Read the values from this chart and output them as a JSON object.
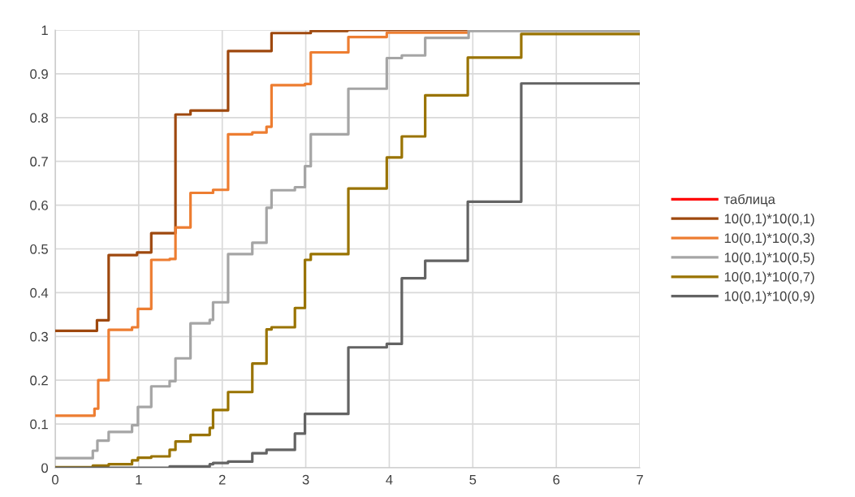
{
  "chart_data": {
    "type": "step",
    "xlim": [
      0,
      7
    ],
    "xticks": [
      0,
      1,
      2,
      3,
      4,
      5,
      6,
      7
    ],
    "ylim": [
      0,
      1
    ],
    "yticks": [
      0,
      0.1,
      0.2,
      0.3,
      0.4,
      0.5,
      0.6,
      0.7,
      0.8,
      0.9,
      1
    ],
    "grid": true,
    "legend": "right",
    "series": [
      {
        "name": "таблица",
        "color": "#ff0000"
      },
      {
        "name": "10(0,1)*10(0,1)",
        "color": "#9e480e",
        "x": [
          0,
          0.5,
          0.64,
          0.98,
          1.15,
          1.44,
          1.62,
          2.07,
          2.59,
          3.06,
          3.5,
          7
        ],
        "values": [
          0.313,
          0.337,
          0.486,
          0.492,
          0.536,
          0.807,
          0.816,
          0.952,
          0.993,
          0.998,
          1,
          1
        ]
      },
      {
        "name": "10(0,1)*10(0,3)",
        "color": "#ed7d31",
        "x": [
          0,
          0.47,
          0.515,
          0.64,
          0.92,
          0.99,
          1.15,
          1.37,
          1.44,
          1.62,
          1.89,
          2.07,
          2.36,
          2.53,
          2.59,
          2.99,
          3.06,
          3.51,
          3.97,
          4.95,
          7
        ],
        "values": [
          0.119,
          0.135,
          0.2,
          0.315,
          0.321,
          0.363,
          0.475,
          0.477,
          0.549,
          0.628,
          0.635,
          0.762,
          0.766,
          0.779,
          0.874,
          0.877,
          0.949,
          0.984,
          0.994,
          1,
          1
        ]
      },
      {
        "name": "10(0,1)*10(0,5)",
        "color": "#a5a5a5",
        "x": [
          0,
          0.45,
          0.505,
          0.64,
          0.92,
          0.99,
          1.15,
          1.37,
          1.44,
          1.62,
          1.85,
          1.89,
          2.07,
          2.36,
          2.53,
          2.59,
          2.87,
          2.99,
          3.06,
          3.51,
          3.97,
          4.15,
          4.43,
          4.95,
          7
        ],
        "values": [
          0.022,
          0.039,
          0.062,
          0.082,
          0.097,
          0.139,
          0.186,
          0.198,
          0.25,
          0.33,
          0.338,
          0.378,
          0.488,
          0.514,
          0.594,
          0.634,
          0.641,
          0.689,
          0.762,
          0.866,
          0.936,
          0.942,
          0.982,
          0.998,
          0.998
        ]
      },
      {
        "name": "10(0,1)*10(0,7)",
        "color": "#997300",
        "x": [
          0,
          0.45,
          0.64,
          0.92,
          0.99,
          1.15,
          1.37,
          1.44,
          1.62,
          1.85,
          1.89,
          2.07,
          2.36,
          2.53,
          2.59,
          2.87,
          2.99,
          3.06,
          3.51,
          3.97,
          4.15,
          4.43,
          4.94,
          5.58,
          7
        ],
        "values": [
          0.001,
          0.005,
          0.008,
          0.017,
          0.023,
          0.026,
          0.041,
          0.06,
          0.075,
          0.091,
          0.132,
          0.173,
          0.238,
          0.316,
          0.321,
          0.365,
          0.475,
          0.488,
          0.638,
          0.709,
          0.757,
          0.851,
          0.937,
          0.991,
          0.991
        ]
      },
      {
        "name": "10(0,1)*10(0,9)",
        "color": "#636363",
        "x": [
          0,
          1.37,
          1.85,
          1.89,
          2.07,
          2.36,
          2.53,
          2.87,
          2.99,
          3.51,
          3.97,
          4.15,
          4.43,
          4.94,
          5.58,
          7
        ],
        "values": [
          0,
          0.003,
          0.008,
          0.011,
          0.014,
          0.033,
          0.041,
          0.078,
          0.123,
          0.275,
          0.283,
          0.433,
          0.473,
          0.608,
          0.878,
          0.878
        ]
      }
    ]
  }
}
